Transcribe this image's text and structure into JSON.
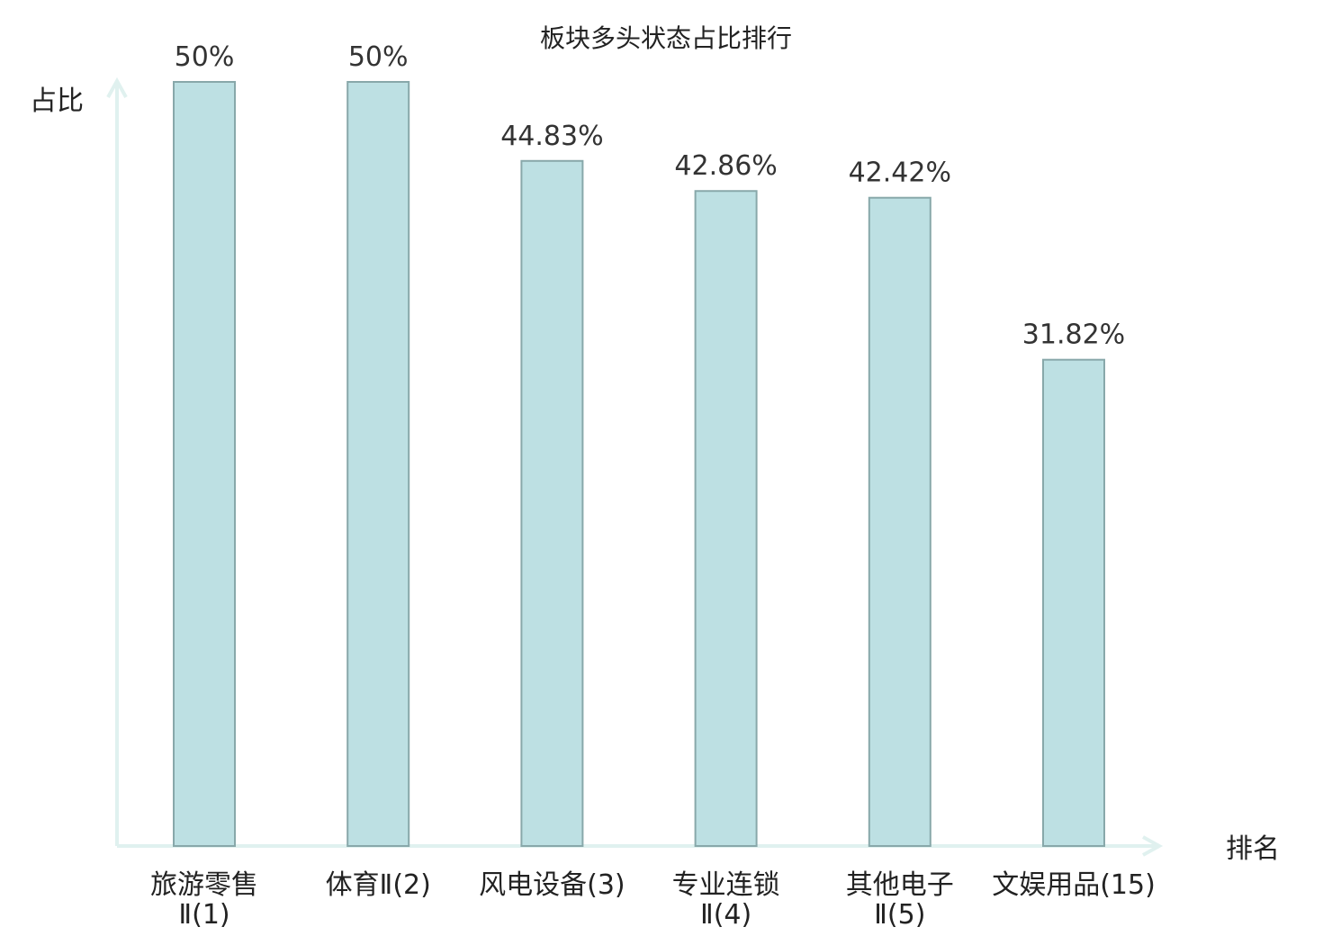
{
  "chart_data": {
    "type": "bar",
    "title": "板块多头状态占比排行",
    "xlabel": "排名",
    "ylabel": "占比",
    "categories": [
      [
        "旅游零售",
        "Ⅱ(1)"
      ],
      [
        "体育Ⅱ(2)"
      ],
      [
        "风电设备(3)"
      ],
      [
        "专业连锁",
        "Ⅱ(4)"
      ],
      [
        "其他电子",
        "Ⅱ(5)"
      ],
      [
        "文娱用品(15)"
      ]
    ],
    "values": [
      50,
      50,
      44.83,
      42.86,
      42.42,
      31.82
    ],
    "value_labels": [
      "50%",
      "50%",
      "44.83%",
      "42.86%",
      "42.42%",
      "31.82%"
    ],
    "highlight_index": 5,
    "ylim": [
      0,
      50
    ],
    "grid": false,
    "colors": {
      "bar_fill": "#bde0e3",
      "bar_stroke": "#88a8aa",
      "axis": "#e0f1ef",
      "highlight_text": "#e31a1c",
      "text": "#222222"
    }
  }
}
